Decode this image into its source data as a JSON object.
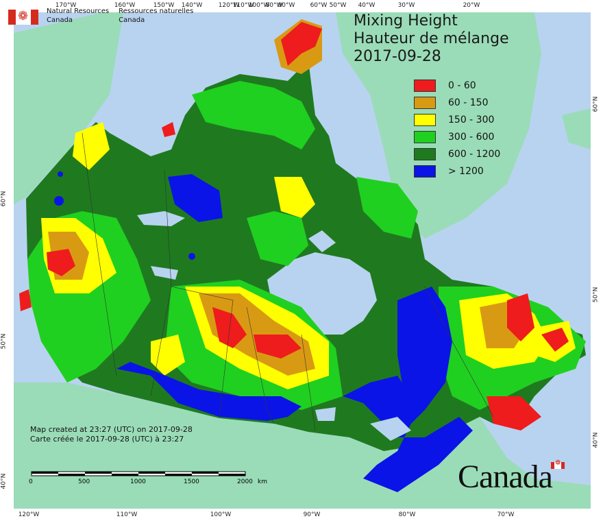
{
  "title": {
    "line1": "Mixing Height",
    "line2": "Hauteur de mélange",
    "date": "2017-09-28"
  },
  "agency": {
    "en_line1": "Natural Resources",
    "en_line2": "Canada",
    "fr_line1": "Ressources naturelles",
    "fr_line2": "Canada"
  },
  "legend": [
    {
      "label": "0 - 60",
      "color": "#ee1c1c"
    },
    {
      "label": "60 - 150",
      "color": "#d99a13"
    },
    {
      "label": "150 - 300",
      "color": "#ffff00"
    },
    {
      "label": "300 - 600",
      "color": "#20d020"
    },
    {
      "label": "600 - 1200",
      "color": "#1f7a1f"
    },
    {
      "label": "> 1200",
      "color": "#0a14e6"
    }
  ],
  "credit": {
    "en": "Map created at 23:27 (UTC) on 2017-09-28",
    "fr": "Carte créée le 2017-09-28 (UTC) à 23:27"
  },
  "scale_bar": {
    "labels": [
      "0",
      "500",
      "1000",
      "1500",
      "2000"
    ],
    "unit": "km"
  },
  "wordmark": "Canada",
  "graticule": {
    "top_longitudes": [
      "170°W",
      "160°W",
      "150°W",
      "140°W",
      "120°W",
      "110°W",
      "100°W",
      "90°W",
      "80°W",
      "60°W",
      "50°W",
      "40°W",
      "30°W",
      "20°W"
    ],
    "bottom_longitudes": [
      "120°W",
      "110°W",
      "100°W",
      "90°W",
      "80°W",
      "70°W"
    ],
    "left_latitudes": [
      "60°N",
      "50°N",
      "40°N"
    ],
    "right_latitudes": [
      "60°N",
      "50°N",
      "40°N"
    ]
  },
  "colors": {
    "ocean": "#b8d3ef",
    "foreign_land": "#9adcb8",
    "lakes": "#b8d3ef"
  }
}
